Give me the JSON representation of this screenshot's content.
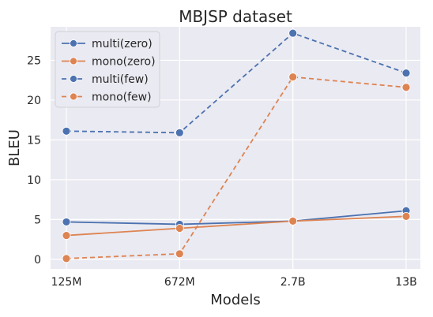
{
  "chart_data": {
    "type": "line",
    "title": "MBJSP dataset",
    "xlabel": "Models",
    "ylabel": "BLEU",
    "categories": [
      "125M",
      "672M",
      "2.7B",
      "13B"
    ],
    "ylim": [
      -1.2,
      29.2
    ],
    "yticks": [
      0,
      5,
      10,
      15,
      20,
      25
    ],
    "grid": true,
    "legend_position": "top-left",
    "background": "#eaeaf2",
    "series": [
      {
        "name": "multi(zero)",
        "values": [
          4.7,
          4.4,
          4.8,
          6.1
        ],
        "color": "#4c72b0",
        "style": "solid"
      },
      {
        "name": "mono(zero)",
        "values": [
          3.0,
          3.9,
          4.8,
          5.4
        ],
        "color": "#dd8452",
        "style": "solid"
      },
      {
        "name": "multi(few)",
        "values": [
          16.1,
          15.9,
          28.4,
          23.4
        ],
        "color": "#4c72b0",
        "style": "dashed"
      },
      {
        "name": "mono(few)",
        "values": [
          0.1,
          0.7,
          22.9,
          21.6
        ],
        "color": "#dd8452",
        "style": "dashed"
      }
    ]
  }
}
